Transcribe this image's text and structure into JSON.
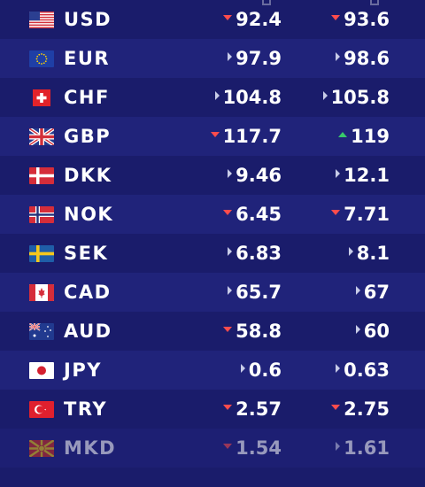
{
  "rates": [
    {
      "code": "USD",
      "flag": "us-flag-icon",
      "buy": "92.4",
      "buy_dir": "down",
      "sell": "93.6",
      "sell_dir": "down"
    },
    {
      "code": "EUR",
      "flag": "eu-flag-icon",
      "buy": "97.9",
      "buy_dir": "flat",
      "sell": "98.6",
      "sell_dir": "flat"
    },
    {
      "code": "CHF",
      "flag": "ch-flag-icon",
      "buy": "104.8",
      "buy_dir": "flat",
      "sell": "105.8",
      "sell_dir": "flat"
    },
    {
      "code": "GBP",
      "flag": "gb-flag-icon",
      "buy": "117.7",
      "buy_dir": "down",
      "sell": "119",
      "sell_dir": "up"
    },
    {
      "code": "DKK",
      "flag": "dk-flag-icon",
      "buy": "9.46",
      "buy_dir": "flat",
      "sell": "12.1",
      "sell_dir": "flat"
    },
    {
      "code": "NOK",
      "flag": "no-flag-icon",
      "buy": "6.45",
      "buy_dir": "down",
      "sell": "7.71",
      "sell_dir": "down"
    },
    {
      "code": "SEK",
      "flag": "se-flag-icon",
      "buy": "6.83",
      "buy_dir": "flat",
      "sell": "8.1",
      "sell_dir": "flat"
    },
    {
      "code": "CAD",
      "flag": "ca-flag-icon",
      "buy": "65.7",
      "buy_dir": "flat",
      "sell": "67",
      "sell_dir": "flat"
    },
    {
      "code": "AUD",
      "flag": "au-flag-icon",
      "buy": "58.8",
      "buy_dir": "down",
      "sell": "60",
      "sell_dir": "flat"
    },
    {
      "code": "JPY",
      "flag": "jp-flag-icon",
      "buy": "0.6",
      "buy_dir": "flat",
      "sell": "0.63",
      "sell_dir": "flat"
    },
    {
      "code": "TRY",
      "flag": "tr-flag-icon",
      "buy": "2.57",
      "buy_dir": "down",
      "sell": "2.75",
      "sell_dir": "down"
    },
    {
      "code": "MKD",
      "flag": "mk-flag-icon",
      "buy": "1.54",
      "buy_dir": "down",
      "sell": "1.61",
      "sell_dir": "flat"
    }
  ],
  "colors": {
    "background": "#1a1c6b",
    "row_alt": "#20237a",
    "down": "#ff4c4c",
    "up": "#38c96a",
    "flat": "#c8cce8"
  }
}
